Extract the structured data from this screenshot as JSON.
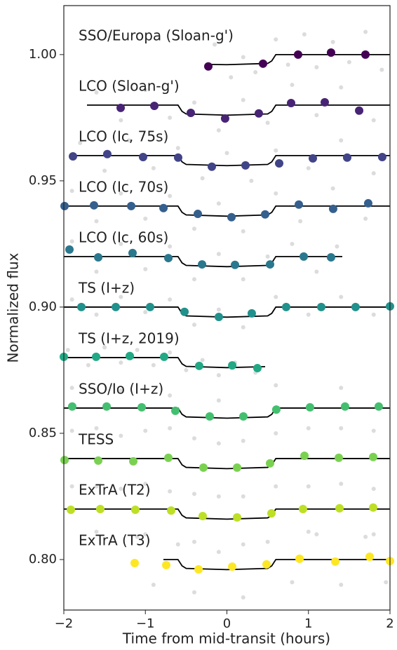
{
  "chart_data": {
    "type": "scatter",
    "x_label": "Time from mid-transit (hours)",
    "y_label": "Normalized flux",
    "xlim": [
      -2,
      2
    ],
    "ylim": [
      0.78,
      1.0194
    ],
    "xticks": [
      {
        "value": -2,
        "label": "−2"
      },
      {
        "value": -1,
        "label": "−1"
      },
      0,
      1,
      2
    ],
    "yticks": [
      {
        "value": 0.8,
        "label": "0.80"
      },
      0.85,
      {
        "value": 0.9,
        "label": "0.90"
      },
      0.95,
      {
        "value": 1.0,
        "label": "1.00"
      }
    ],
    "raw_color": "#d3d3d3",
    "model_color": "#000000",
    "series": [
      {
        "name": "SSO/Europa (Sloan-g')",
        "color": "#440154",
        "x": [
          -0.228,
          0.443,
          0.873,
          1.277,
          1.699
        ],
        "values": [
          0.9953,
          0.9964,
          1.0,
          1.0008,
          1.0
        ],
        "model_x": [
          -0.2,
          0,
          0.5,
          0.55,
          0.6,
          2
        ],
        "model_y": [
          0.9961,
          0.996,
          0.9965,
          0.9975,
          1.0,
          1.0
        ],
        "raw": [
          [
            -0.15,
            1.004
          ],
          [
            0.05,
            0.991
          ],
          [
            0.2,
            0.999
          ],
          [
            0.35,
            0.993
          ],
          [
            0.6,
            1.006
          ],
          [
            0.75,
            0.996
          ],
          [
            0.95,
            1.008
          ],
          [
            1.1,
            0.995
          ],
          [
            1.3,
            1.005
          ],
          [
            1.5,
            0.997
          ],
          [
            1.7,
            1.009
          ],
          [
            1.9,
            0.994
          ]
        ]
      },
      {
        "name": "LCO (Sloan-g')",
        "color": "#482475",
        "x": [
          -1.303,
          -0.89,
          -0.443,
          -0.022,
          0.391,
          0.787,
          1.2,
          1.622
        ],
        "values": [
          0.9789,
          0.9797,
          0.9769,
          0.9747,
          0.9767,
          0.9808,
          0.9811,
          0.9778
        ],
        "model_x": [
          -1.716,
          -0.6,
          -0.55,
          -0.5,
          0,
          0.5,
          0.55,
          0.6,
          2
        ],
        "model_y": [
          0.98,
          0.98,
          0.9775,
          0.9765,
          0.976,
          0.9765,
          0.9775,
          0.98,
          0.98
        ],
        "raw": [
          [
            -1.6,
            0.985
          ],
          [
            -1.3,
            0.974
          ],
          [
            -1.0,
            0.986
          ],
          [
            -0.7,
            0.975
          ],
          [
            -0.4,
            0.981
          ],
          [
            -0.1,
            0.97
          ],
          [
            0.2,
            0.982
          ],
          [
            0.5,
            0.973
          ],
          [
            0.8,
            0.988
          ],
          [
            1.1,
            0.976
          ],
          [
            1.4,
            0.987
          ],
          [
            1.8,
            0.974
          ]
        ]
      },
      {
        "name": "LCO (Ic, 75s)",
        "color": "#414487",
        "x": [
          -1.888,
          -1.467,
          -1.028,
          -0.598,
          -0.185,
          0.228,
          0.641,
          1.054,
          1.475,
          1.905
        ],
        "values": [
          0.9597,
          0.9606,
          0.9594,
          0.9592,
          0.9556,
          0.9561,
          0.9569,
          0.9589,
          0.9592,
          0.9594
        ],
        "model_x": [
          -1.9,
          -0.6,
          -0.55,
          -0.5,
          0,
          0.5,
          0.55,
          0.6,
          2
        ],
        "model_y": [
          0.96,
          0.96,
          0.9575,
          0.9565,
          0.956,
          0.9565,
          0.9575,
          0.96,
          0.96
        ],
        "raw": [
          [
            -1.8,
            0.965
          ],
          [
            -1.5,
            0.954
          ],
          [
            -1.2,
            0.966
          ],
          [
            -0.9,
            0.955
          ],
          [
            -0.6,
            0.963
          ],
          [
            -0.3,
            0.951
          ],
          [
            0.0,
            0.961
          ],
          [
            0.3,
            0.95
          ],
          [
            0.6,
            0.962
          ],
          [
            1.0,
            0.955
          ],
          [
            1.4,
            0.966
          ],
          [
            1.8,
            0.953
          ]
        ]
      },
      {
        "name": "LCO (Ic, 70s)",
        "color": "#355f8d",
        "x": [
          -1.991,
          -1.63,
          -1.174,
          -0.778,
          -0.357,
          0.056,
          0.469,
          0.882,
          1.303,
          1.733
        ],
        "values": [
          0.94,
          0.9403,
          0.94,
          0.9392,
          0.9369,
          0.9356,
          0.9367,
          0.9406,
          0.9389,
          0.9411
        ],
        "model_x": [
          -2,
          -0.6,
          -0.55,
          -0.5,
          0,
          0.5,
          0.55,
          0.6,
          2
        ],
        "model_y": [
          0.94,
          0.94,
          0.9375,
          0.9365,
          0.936,
          0.9365,
          0.9375,
          0.94,
          0.94
        ],
        "raw": [
          [
            -1.9,
            0.946
          ],
          [
            -1.6,
            0.934
          ],
          [
            -1.3,
            0.945
          ],
          [
            -1.0,
            0.935
          ],
          [
            -0.7,
            0.944
          ],
          [
            -0.4,
            0.931
          ],
          [
            -0.1,
            0.941
          ],
          [
            0.2,
            0.93
          ],
          [
            0.6,
            0.945
          ],
          [
            0.9,
            0.934
          ],
          [
            1.3,
            0.947
          ],
          [
            1.7,
            0.935
          ]
        ]
      },
      {
        "name": "LCO (Ic, 60s)",
        "color": "#2a788e",
        "x": [
          -1.931,
          -1.578,
          -1.157,
          -0.718,
          -0.305,
          0.099,
          0.529,
          0.942,
          1.277
        ],
        "values": [
          0.9228,
          0.9197,
          0.9214,
          0.9194,
          0.9169,
          0.9167,
          0.9169,
          0.92,
          0.9197
        ],
        "model_x": [
          -2,
          -0.6,
          -0.55,
          -0.5,
          0,
          0.5,
          0.55,
          0.6,
          1.415
        ],
        "model_y": [
          0.92,
          0.92,
          0.9175,
          0.9165,
          0.916,
          0.9165,
          0.9175,
          0.92,
          0.92
        ],
        "raw": [
          [
            -1.9,
            0.926
          ],
          [
            -1.6,
            0.914
          ],
          [
            -1.3,
            0.925
          ],
          [
            -1.0,
            0.915
          ],
          [
            -0.7,
            0.924
          ],
          [
            -0.4,
            0.911
          ],
          [
            -0.1,
            0.921
          ],
          [
            0.2,
            0.911
          ],
          [
            0.5,
            0.92
          ],
          [
            0.8,
            0.925
          ],
          [
            1.1,
            0.914
          ],
          [
            1.35,
            0.924
          ]
        ]
      },
      {
        "name": "TS (I+z)",
        "color": "#21918c",
        "x": [
          -1.785,
          -1.363,
          -0.942,
          -0.52,
          -0.099,
          0.305,
          0.727,
          1.157,
          1.578,
          2.0
        ],
        "values": [
          0.9,
          0.9,
          0.9,
          0.8981,
          0.8961,
          0.8975,
          0.9,
          0.9,
          0.9,
          0.9003
        ],
        "model_x": [
          -2,
          -0.6,
          -0.55,
          -0.5,
          0,
          0.5,
          0.55,
          0.6,
          2
        ],
        "model_y": [
          0.9,
          0.9,
          0.8975,
          0.8965,
          0.896,
          0.8965,
          0.8975,
          0.9,
          0.9
        ],
        "raw": [
          [
            -1.9,
            0.903
          ],
          [
            -1.6,
            0.897
          ],
          [
            -1.3,
            0.904
          ],
          [
            -1.0,
            0.898
          ],
          [
            -0.7,
            0.903
          ],
          [
            -0.4,
            0.893
          ],
          [
            -0.1,
            0.899
          ],
          [
            0.2,
            0.892
          ],
          [
            0.6,
            0.904
          ],
          [
            1.0,
            0.897
          ],
          [
            1.4,
            0.904
          ],
          [
            1.8,
            0.897
          ]
        ]
      },
      {
        "name": "TS (I+z, 2019)",
        "color": "#22a884",
        "x": [
          -2.0,
          -1.604,
          -1.191,
          -0.77,
          -0.34,
          0.065,
          0.374
        ],
        "values": [
          0.8803,
          0.8803,
          0.8806,
          0.8803,
          0.8767,
          0.8769,
          0.8758
        ],
        "model_x": [
          -2,
          -0.6,
          -0.55,
          -0.5,
          0,
          0.469
        ],
        "model_y": [
          0.88,
          0.88,
          0.8775,
          0.8765,
          0.876,
          0.8764
        ],
        "raw": [
          [
            -1.95,
            0.883
          ],
          [
            -1.7,
            0.877
          ],
          [
            -1.5,
            0.884
          ],
          [
            -1.3,
            0.878
          ],
          [
            -1.1,
            0.883
          ],
          [
            -0.9,
            0.877
          ],
          [
            -0.7,
            0.882
          ],
          [
            -0.5,
            0.875
          ],
          [
            -0.3,
            0.879
          ],
          [
            -0.1,
            0.873
          ],
          [
            0.1,
            0.878
          ],
          [
            0.35,
            0.874
          ]
        ]
      },
      {
        "name": "SSO/Io (I+z)",
        "color": "#44bf70",
        "x": [
          -1.897,
          -1.475,
          -1.045,
          -0.632,
          -0.211,
          0.202,
          0.606,
          1.019,
          1.449,
          1.862
        ],
        "values": [
          0.8606,
          0.8606,
          0.8603,
          0.8589,
          0.8567,
          0.8567,
          0.8594,
          0.8603,
          0.8606,
          0.8606
        ],
        "model_x": [
          -2,
          -0.6,
          -0.55,
          -0.5,
          0,
          0.5,
          0.55,
          0.6,
          2
        ],
        "model_y": [
          0.86,
          0.86,
          0.8575,
          0.8565,
          0.856,
          0.8565,
          0.8575,
          0.86,
          0.86
        ],
        "raw": [
          [
            -1.9,
            0.868
          ],
          [
            -1.6,
            0.852
          ],
          [
            -1.3,
            0.867
          ],
          [
            -1.0,
            0.851
          ],
          [
            -0.7,
            0.865
          ],
          [
            -0.4,
            0.848
          ],
          [
            -0.1,
            0.863
          ],
          [
            0.2,
            0.847
          ],
          [
            0.6,
            0.869
          ],
          [
            1.0,
            0.852
          ],
          [
            1.4,
            0.868
          ],
          [
            1.8,
            0.851
          ]
        ]
      },
      {
        "name": "TESS",
        "color": "#7ad151",
        "x": [
          -1.991,
          -1.578,
          -1.148,
          -0.718,
          -0.288,
          0.125,
          0.529,
          0.951,
          1.372,
          1.794
        ],
        "values": [
          0.8394,
          0.8392,
          0.8389,
          0.8403,
          0.8364,
          0.8364,
          0.8381,
          0.8411,
          0.8403,
          0.8406
        ],
        "model_x": [
          -2,
          -0.6,
          -0.55,
          -0.5,
          0,
          0.5,
          0.55,
          0.6,
          2
        ],
        "model_y": [
          0.84,
          0.84,
          0.8375,
          0.8365,
          0.836,
          0.8365,
          0.8375,
          0.84,
          0.84
        ],
        "raw": [
          [
            -1.9,
            0.851
          ],
          [
            -1.6,
            0.829
          ],
          [
            -1.3,
            0.849
          ],
          [
            -1.0,
            0.83
          ],
          [
            -0.7,
            0.852
          ],
          [
            -0.4,
            0.826
          ],
          [
            -0.1,
            0.846
          ],
          [
            0.2,
            0.825
          ],
          [
            0.6,
            0.85
          ],
          [
            1.0,
            0.829
          ],
          [
            1.4,
            0.852
          ],
          [
            1.8,
            0.828
          ]
        ]
      },
      {
        "name": "ExTrA (T2)",
        "color": "#bddf26",
        "x": [
          -1.914,
          -1.553,
          -1.123,
          -0.684,
          -0.297,
          0.125,
          0.546,
          0.933,
          1.381,
          1.794
        ],
        "values": [
          0.8197,
          0.82,
          0.8197,
          0.8194,
          0.8172,
          0.8167,
          0.8183,
          0.82,
          0.8203,
          0.8206
        ],
        "model_x": [
          -2,
          -0.6,
          -0.55,
          -0.5,
          0,
          0.5,
          0.55,
          0.6,
          2
        ],
        "model_y": [
          0.82,
          0.82,
          0.8175,
          0.8165,
          0.816,
          0.8165,
          0.8175,
          0.82,
          0.82
        ],
        "raw": [
          [
            -1.9,
            0.829
          ],
          [
            -1.6,
            0.811
          ],
          [
            -1.3,
            0.828
          ],
          [
            -1.0,
            0.81
          ],
          [
            -0.7,
            0.827
          ],
          [
            -0.4,
            0.807
          ],
          [
            -0.1,
            0.825
          ],
          [
            0.2,
            0.806
          ],
          [
            0.6,
            0.829
          ],
          [
            1.0,
            0.811
          ],
          [
            1.4,
            0.83
          ],
          [
            1.8,
            0.81
          ]
        ]
      },
      {
        "name": "ExTrA (T3)",
        "color": "#fde725",
        "x": [
          -1.131,
          -0.744,
          -0.348,
          0.065,
          0.486,
          0.891,
          1.329,
          1.751,
          2.0
        ],
        "values": [
          0.7986,
          0.7978,
          0.7961,
          0.7972,
          0.7981,
          0.8003,
          0.7992,
          0.8011,
          0.7994
        ],
        "model_x": [
          -0.779,
          -0.6,
          -0.55,
          -0.5,
          0,
          0.5,
          0.55,
          0.6,
          2
        ],
        "model_y": [
          0.8,
          0.8,
          0.7975,
          0.7965,
          0.796,
          0.7965,
          0.7975,
          0.8,
          0.8
        ],
        "raw": [
          [
            -1.1,
            0.809
          ],
          [
            -0.9,
            0.79
          ],
          [
            -0.6,
            0.806
          ],
          [
            -0.4,
            0.787
          ],
          [
            -0.1,
            0.803
          ],
          [
            0.2,
            0.785
          ],
          [
            0.5,
            0.807
          ],
          [
            0.8,
            0.791
          ],
          [
            1.1,
            0.81
          ],
          [
            1.4,
            0.79
          ],
          [
            1.7,
            0.809
          ],
          [
            1.95,
            0.791
          ]
        ]
      }
    ]
  }
}
